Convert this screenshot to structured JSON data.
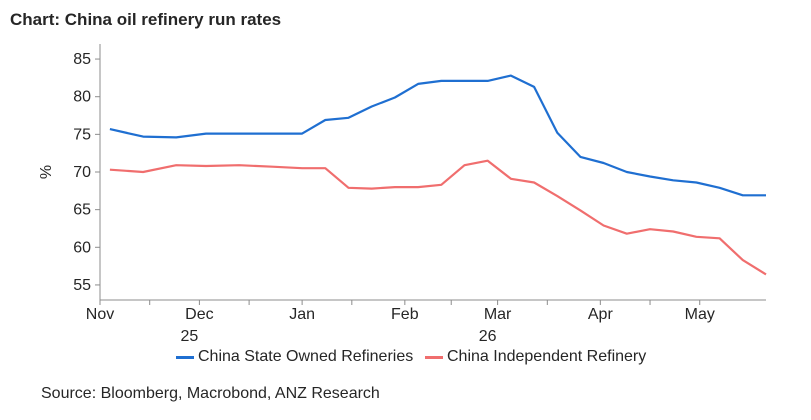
{
  "title": "Chart: China oil refinery run rates",
  "source": "Source:  Bloomberg, Macrobond, ANZ Research",
  "chart_data": {
    "type": "line",
    "ylabel": "%",
    "xlabel": "",
    "ylim": [
      53,
      87
    ],
    "yticks": [
      55,
      60,
      65,
      70,
      75,
      80,
      85
    ],
    "xlim": [
      "2025-11-01",
      "2026-05-12"
    ],
    "xticks": [
      {
        "date": "2025-11-01",
        "label": "Nov",
        "sublabel": ""
      },
      {
        "date": "2025-12-01",
        "label": "Dec",
        "sublabel": "25"
      },
      {
        "date": "2026-01-01",
        "label": "Jan",
        "sublabel": ""
      },
      {
        "date": "2026-02-01",
        "label": "Feb",
        "sublabel": ""
      },
      {
        "date": "2026-03-01",
        "label": "Mar",
        "sublabel": "26"
      },
      {
        "date": "2026-04-01",
        "label": "Apr",
        "sublabel": ""
      },
      {
        "date": "2026-05-01",
        "label": "May",
        "sublabel": ""
      }
    ],
    "grid": false,
    "legend_position": "bottom",
    "series": [
      {
        "name": "China State Owned Refineries",
        "color": "#1f6fd1",
        "points": [
          [
            "2025-11-04",
            75.7
          ],
          [
            "2025-11-14",
            74.7
          ],
          [
            "2025-11-24",
            74.6
          ],
          [
            "2025-12-03",
            75.1
          ],
          [
            "2025-12-13",
            75.1
          ],
          [
            "2025-12-23",
            75.1
          ],
          [
            "2026-01-01",
            75.1
          ],
          [
            "2026-01-08",
            76.9
          ],
          [
            "2026-01-15",
            77.2
          ],
          [
            "2026-01-22",
            78.7
          ],
          [
            "2026-01-29",
            79.9
          ],
          [
            "2026-02-05",
            81.7
          ],
          [
            "2026-02-12",
            82.1
          ],
          [
            "2026-02-19",
            82.1
          ],
          [
            "2026-02-26",
            82.1
          ],
          [
            "2026-03-05",
            82.8
          ],
          [
            "2026-03-12",
            81.3
          ],
          [
            "2026-03-19",
            75.2
          ],
          [
            "2026-03-26",
            72.0
          ],
          [
            "2026-04-02",
            71.2
          ],
          [
            "2026-04-09",
            70.0
          ],
          [
            "2026-04-16",
            69.4
          ],
          [
            "2026-04-23",
            68.9
          ],
          [
            "2026-04-30",
            68.6
          ],
          [
            "2026-05-07",
            67.9
          ],
          [
            "2026-05-14",
            66.9
          ],
          [
            "2026-05-21",
            66.9
          ]
        ]
      },
      {
        "name": "China Independent Refinery",
        "color": "#f06e6e",
        "points": [
          [
            "2025-11-04",
            70.3
          ],
          [
            "2025-11-14",
            70.0
          ],
          [
            "2025-11-24",
            70.9
          ],
          [
            "2025-12-03",
            70.8
          ],
          [
            "2025-12-13",
            70.9
          ],
          [
            "2025-12-23",
            70.7
          ],
          [
            "2026-01-01",
            70.5
          ],
          [
            "2026-01-08",
            70.5
          ],
          [
            "2026-01-15",
            67.9
          ],
          [
            "2026-01-22",
            67.8
          ],
          [
            "2026-01-29",
            68.0
          ],
          [
            "2026-02-05",
            68.0
          ],
          [
            "2026-02-12",
            68.3
          ],
          [
            "2026-02-19",
            70.9
          ],
          [
            "2026-02-26",
            71.5
          ],
          [
            "2026-03-05",
            69.1
          ],
          [
            "2026-03-12",
            68.6
          ],
          [
            "2026-03-19",
            66.8
          ],
          [
            "2026-03-26",
            64.9
          ],
          [
            "2026-04-02",
            62.9
          ],
          [
            "2026-04-09",
            61.8
          ],
          [
            "2026-04-16",
            62.4
          ],
          [
            "2026-04-23",
            62.1
          ],
          [
            "2026-04-30",
            61.4
          ],
          [
            "2026-05-07",
            61.2
          ],
          [
            "2026-05-14",
            58.3
          ],
          [
            "2026-05-21",
            56.4
          ]
        ]
      }
    ]
  }
}
